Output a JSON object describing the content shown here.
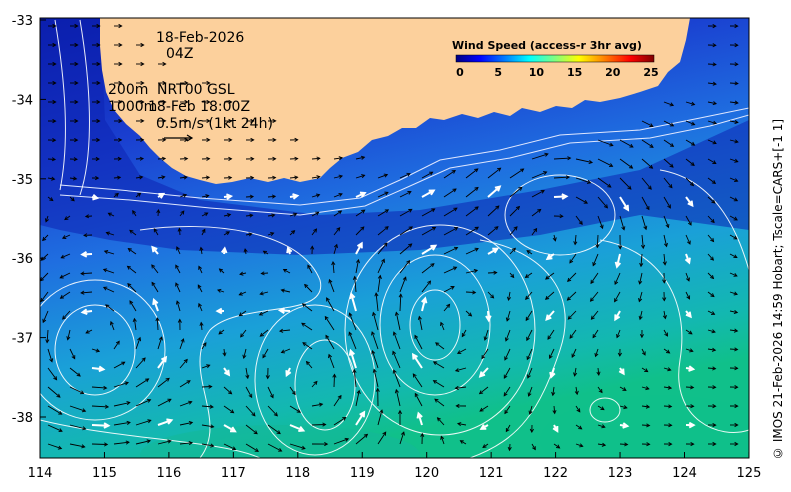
{
  "map": {
    "date": "18-Feb-2026",
    "time": "04Z",
    "depth_line1": "200m",
    "depth_line2": "1000m",
    "product_line1": "NRT00 GSL",
    "product_line2": "18-Feb 18:00Z",
    "scale_label": "0.5m/s (1kt 24h)",
    "credit": "© IMOS 21-Feb-2026 14:59 Hobart; Tscale=CARS+[-1 1]",
    "x_ticks": [
      "114",
      "115",
      "116",
      "117",
      "118",
      "119",
      "120",
      "121",
      "122",
      "123",
      "124",
      "125"
    ],
    "y_ticks": [
      "-33",
      "-34",
      "-35",
      "-36",
      "-37",
      "-38"
    ],
    "colors": {
      "land": "#fcd09c",
      "frame": "#000000"
    }
  },
  "legend": {
    "title": "Wind Speed (access-r 3hr avg)",
    "ticks": [
      "0",
      "5",
      "10",
      "15",
      "20",
      "25"
    ],
    "colormap": [
      "#000080",
      "#0000ff",
      "#0080ff",
      "#00ffff",
      "#80ff80",
      "#ffff00",
      "#ff8000",
      "#ff0000",
      "#800000"
    ]
  }
}
